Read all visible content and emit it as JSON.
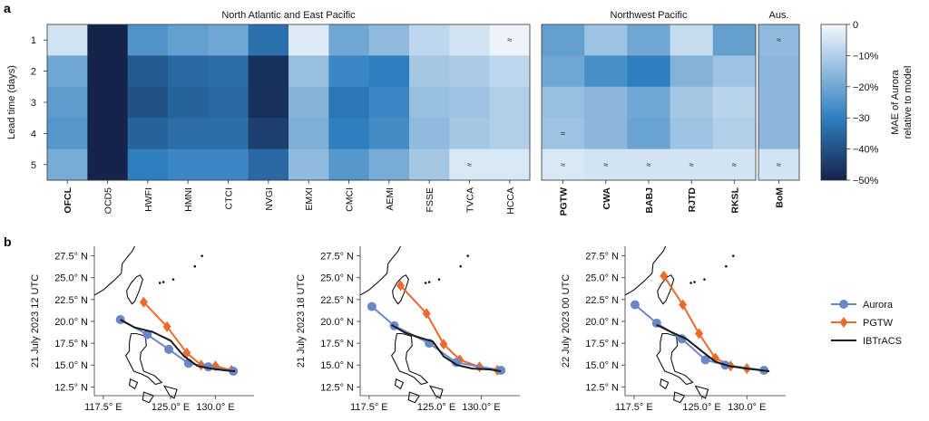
{
  "panel_a_label": "a",
  "panel_b_label": "b",
  "chart_data": [
    {
      "type": "heatmap",
      "title": "",
      "ylabel": "Lead time (days)",
      "rows": [
        "1",
        "2",
        "3",
        "4",
        "5"
      ],
      "groups": [
        {
          "title": "North Atlantic and East Pacific",
          "columns": [
            "OFCL",
            "OCD5",
            "HWFI",
            "HMNI",
            "CTCI",
            "NVGI",
            "EMXI",
            "CMCI",
            "AEMI",
            "FSSE",
            "TVCA",
            "HCCA"
          ],
          "bold": [
            "OFCL"
          ]
        },
        {
          "title": "Northwest Pacific",
          "columns": [
            "PGTW",
            "CWA",
            "BABJ",
            "RJTD",
            "RKSL"
          ],
          "bold": [
            "PGTW",
            "CWA",
            "BABJ",
            "RJTD",
            "RKSL"
          ]
        },
        {
          "title": "Aus.",
          "columns": [
            "BoM"
          ],
          "bold": [
            "BoM"
          ]
        }
      ],
      "values": [
        [
          [
            -5,
            -50,
            -25,
            -22,
            -20,
            -33,
            -3,
            -20,
            -15,
            -8,
            -5,
            -1
          ],
          [
            -22,
            -13,
            -20,
            -7,
            -22
          ],
          [
            -15
          ]
        ],
        [
          [
            -20,
            -50,
            -38,
            -35,
            -34,
            -47,
            -14,
            -28,
            -30,
            -12,
            -11,
            -8
          ],
          [
            -20,
            -26,
            -30,
            -17,
            -13
          ],
          [
            -16
          ]
        ],
        [
          [
            -23,
            -50,
            -40,
            -36,
            -35,
            -47,
            -17,
            -32,
            -28,
            -14,
            -13,
            -10
          ],
          [
            -14,
            -16,
            -20,
            -12,
            -9
          ],
          [
            -16
          ]
        ],
        [
          [
            -24,
            -50,
            -36,
            -34,
            -34,
            -44,
            -18,
            -30,
            -27,
            -15,
            -12,
            -10
          ],
          [
            -13,
            -16,
            -21,
            -13,
            -10
          ],
          [
            -16
          ]
        ],
        [
          [
            -19,
            -50,
            -30,
            -28,
            -28,
            -35,
            -15,
            -24,
            -19,
            -12,
            -4,
            -4
          ],
          [
            -4,
            -5,
            -5,
            -5,
            -5
          ],
          [
            -5
          ]
        ]
      ],
      "approx_cells": [
        {
          "group": 0,
          "row": 0,
          "col": 11
        },
        {
          "group": 0,
          "row": 4,
          "col": 10
        },
        {
          "group": 1,
          "row": 3,
          "col": 0
        },
        {
          "group": 1,
          "row": 4,
          "col": 0
        },
        {
          "group": 1,
          "row": 4,
          "col": 1
        },
        {
          "group": 1,
          "row": 4,
          "col": 2
        },
        {
          "group": 1,
          "row": 4,
          "col": 3
        },
        {
          "group": 1,
          "row": 4,
          "col": 4
        },
        {
          "group": 2,
          "row": 0,
          "col": 0
        },
        {
          "group": 2,
          "row": 4,
          "col": 0
        }
      ],
      "approx_symbol": "≈",
      "colorbar": {
        "label_lines": [
          "MAE of Aurora",
          "relative to model"
        ],
        "ticks": [
          "0",
          "−10%",
          "−20%",
          "−30",
          "−40%",
          "−50%"
        ],
        "range": [
          -50,
          0
        ],
        "color_low": "#15244a",
        "color_mid": "#2f7fbf",
        "color_high": "#f2f7fc"
      }
    },
    {
      "type": "line",
      "ylabel": "21 July 2023 12 UTC",
      "yticks": [
        "27.5° N",
        "25.0° N",
        "22.5° N",
        "20.0° N",
        "17.5° N",
        "15.0° N",
        "12.5° N"
      ],
      "xticks": [
        "117.5° E",
        "125.0° E",
        "130.0° E"
      ],
      "series": [
        {
          "name": "Aurora",
          "x": [
            119.4,
            122.4,
            124.8,
            127.0,
            129.2,
            132.0
          ],
          "y": [
            20.2,
            18.5,
            16.8,
            15.2,
            14.8,
            14.3
          ]
        },
        {
          "name": "PGTW",
          "x": [
            122.0,
            124.6,
            126.8,
            128.4,
            130.0,
            131.8
          ],
          "y": [
            22.2,
            19.4,
            16.4,
            15.0,
            14.9,
            14.4
          ]
        },
        {
          "name": "IBTrACS",
          "x": [
            119.4,
            121.0,
            123.0,
            125.0,
            126.5,
            128.0,
            129.5,
            131.0,
            132.2
          ],
          "y": [
            20.2,
            19.3,
            18.8,
            17.8,
            16.0,
            14.9,
            14.6,
            14.4,
            14.3
          ]
        }
      ]
    },
    {
      "type": "line",
      "ylabel": "21 July 2023 18 UTC",
      "yticks": [
        "27.5° N",
        "25.0° N",
        "22.5° N",
        "20.0° N",
        "17.5° N",
        "15.0° N",
        "12.5° N"
      ],
      "xticks": [
        "117.5° E",
        "125.0° E",
        "130.0° E"
      ],
      "series": [
        {
          "name": "Aurora",
          "x": [
            117.8,
            120.3,
            124.2,
            127.2,
            132.2
          ],
          "y": [
            21.7,
            19.5,
            17.5,
            15.3,
            14.4
          ]
        },
        {
          "name": "PGTW",
          "x": [
            121.0,
            123.9,
            125.8,
            127.6,
            129.8,
            131.8
          ],
          "y": [
            24.1,
            20.9,
            17.4,
            15.6,
            14.8,
            14.4
          ]
        },
        {
          "name": "IBTrACS",
          "x": [
            120.0,
            121.5,
            123.0,
            124.6,
            125.8,
            127.3,
            129.0,
            131.0,
            132.2
          ],
          "y": [
            19.6,
            18.7,
            18.2,
            17.7,
            16.0,
            15.0,
            14.6,
            14.5,
            14.3
          ]
        }
      ]
    },
    {
      "type": "line",
      "ylabel": "22 July 2023 00 UTC",
      "yticks": [
        "27.5° N",
        "25.0° N",
        "22.5° N",
        "20.0° N",
        "17.5° N",
        "15.0° N",
        "12.5° N"
      ],
      "xticks": [
        "117.5° E",
        "125.0° E",
        "130.0° E"
      ],
      "series": [
        {
          "name": "Aurora",
          "x": [
            117.6,
            120.0,
            122.8,
            125.4,
            127.6,
            131.9
          ],
          "y": [
            21.9,
            19.8,
            18.0,
            15.6,
            15.0,
            14.4
          ]
        },
        {
          "name": "PGTW",
          "x": [
            120.8,
            122.9,
            124.7,
            126.5,
            128.2,
            130.0
          ],
          "y": [
            25.2,
            21.9,
            18.6,
            15.8,
            14.9,
            14.6
          ]
        },
        {
          "name": "IBTrACS",
          "x": [
            120.0,
            121.6,
            123.3,
            125.0,
            126.5,
            128.0,
            130.0,
            132.5
          ],
          "y": [
            19.6,
            18.8,
            18.0,
            16.6,
            15.4,
            14.9,
            14.6,
            14.3
          ]
        }
      ]
    }
  ],
  "legend": [
    {
      "name": "Aurora",
      "color": "#6b87c7",
      "marker": "circle"
    },
    {
      "name": "PGTW",
      "color": "#ec6a2c",
      "marker": "diamond"
    },
    {
      "name": "IBTrACS",
      "color": "#1a1a1a",
      "marker": "none"
    }
  ]
}
